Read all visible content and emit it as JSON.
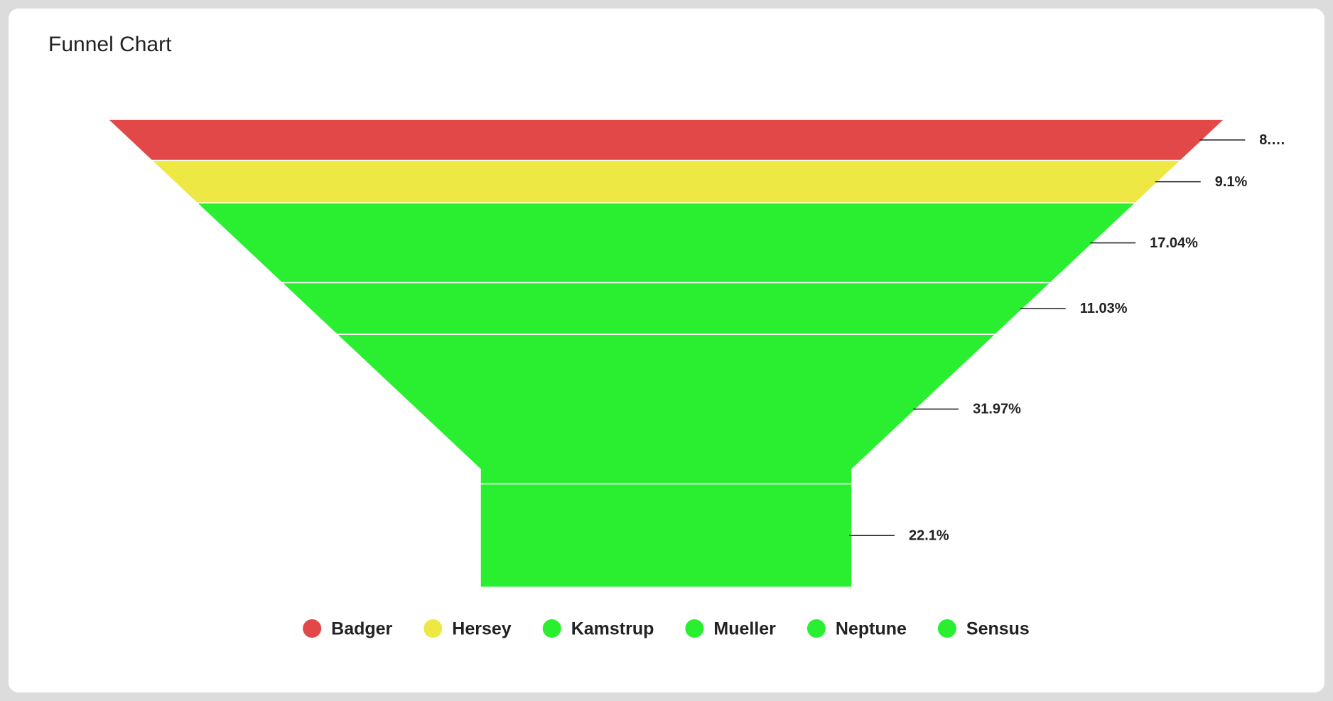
{
  "chart_data": {
    "type": "funnel",
    "title": "Funnel Chart",
    "categories": [
      "Badger",
      "Hersey",
      "Kamstrup",
      "Mueller",
      "Neptune",
      "Sensus"
    ],
    "values": [
      8.76,
      9.1,
      17.04,
      11.03,
      31.97,
      22.1
    ],
    "value_labels": [
      "8.…",
      "9.1%",
      "17.04%",
      "11.03%",
      "31.97%",
      "22.1%"
    ],
    "colors": [
      "#e24848",
      "#ede844",
      "#2aef30",
      "#2aef30",
      "#2aef30",
      "#2aef30"
    ]
  }
}
